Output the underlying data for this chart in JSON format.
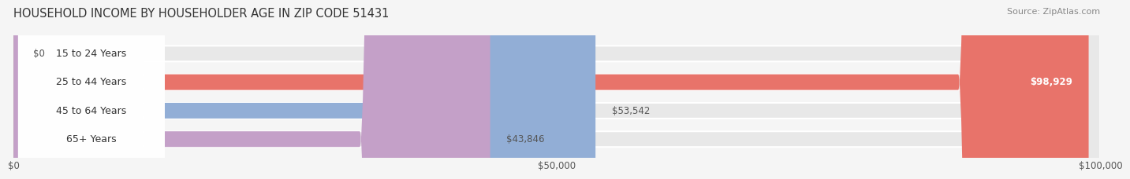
{
  "title": "HOUSEHOLD INCOME BY HOUSEHOLDER AGE IN ZIP CODE 51431",
  "source": "Source: ZipAtlas.com",
  "categories": [
    "15 to 24 Years",
    "25 to 44 Years",
    "45 to 64 Years",
    "65+ Years"
  ],
  "values": [
    0,
    98929,
    53542,
    43846
  ],
  "bar_colors": [
    "#f5c89a",
    "#e8736a",
    "#92aed6",
    "#c4a0c8"
  ],
  "background_color": "#f5f5f5",
  "bar_bg_color": "#e8e8e8",
  "xlim": [
    0,
    100000
  ],
  "xticks": [
    0,
    50000,
    100000
  ],
  "xtick_labels": [
    "$0",
    "$50,000",
    "$100,000"
  ],
  "bar_height": 0.55,
  "figsize": [
    14.06,
    2.33
  ],
  "dpi": 100
}
